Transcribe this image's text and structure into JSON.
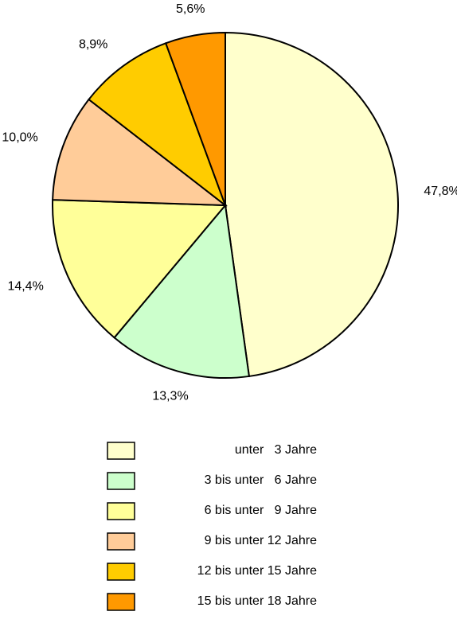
{
  "chart_data": {
    "type": "pie",
    "categories": [
      "unter   3 Jahre",
      "3 bis unter   6 Jahre",
      "6 bis unter   9 Jahre",
      "9 bis unter 12 Jahre",
      "12 bis unter 15 Jahre",
      "15 bis unter 18 Jahre"
    ],
    "values": [
      47.8,
      13.3,
      14.4,
      10.0,
      8.9,
      5.6
    ],
    "value_labels": [
      "47,8%",
      "13,3%",
      "14,4%",
      "10,0%",
      "8,9%",
      "5,6%"
    ],
    "colors": [
      "#ffffcc",
      "#ccffcc",
      "#ffff99",
      "#ffcc99",
      "#ffcc00",
      "#ff9900"
    ],
    "legend": "bottom"
  }
}
